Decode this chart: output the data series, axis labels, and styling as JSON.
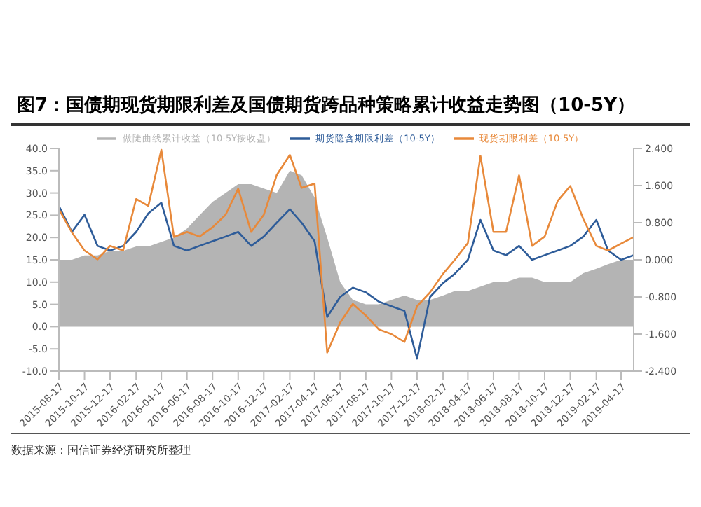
{
  "chart_data": {
    "type": "line",
    "title": "图7：国债期现货期限利差及国债期货跨品种策略累计收益走势图（10-5Y）",
    "x": [
      "2015-08-17",
      "2015-09-17",
      "2015-10-17",
      "2015-11-17",
      "2015-12-17",
      "2016-01-17",
      "2016-02-17",
      "2016-03-17",
      "2016-04-17",
      "2016-05-17",
      "2016-06-17",
      "2016-07-17",
      "2016-08-17",
      "2016-09-17",
      "2016-10-17",
      "2016-11-17",
      "2016-12-17",
      "2017-01-17",
      "2017-02-17",
      "2017-03-17",
      "2017-04-17",
      "2017-05-17",
      "2017-06-17",
      "2017-07-17",
      "2017-08-17",
      "2017-09-17",
      "2017-10-17",
      "2017-11-17",
      "2017-12-17",
      "2018-01-17",
      "2018-02-17",
      "2018-03-17",
      "2018-04-17",
      "2018-05-17",
      "2018-06-17",
      "2018-07-17",
      "2018-08-17",
      "2018-09-17",
      "2018-10-17",
      "2018-11-17",
      "2018-12-17",
      "2019-01-17",
      "2019-02-17",
      "2019-03-17",
      "2019-04-17",
      "2019-05-17"
    ],
    "series": [
      {
        "name": "做陡曲线累计收益（10-5Y按收盘）",
        "type": "area",
        "axis": "y",
        "color": "#b4b4b4",
        "values": [
          15,
          15,
          16,
          16,
          17,
          17,
          18,
          18,
          19,
          20,
          22,
          25,
          28,
          30,
          32,
          32,
          31,
          30,
          35,
          34,
          29,
          20,
          10,
          6,
          5,
          5,
          6,
          7,
          6,
          6,
          7,
          8,
          8,
          9,
          10,
          10,
          11,
          11,
          10,
          10,
          10,
          12,
          13,
          14,
          15,
          15
        ]
      },
      {
        "name": "期货隐含期限利差（10-5Y）",
        "axis": "y2",
        "color": "#2e5c99",
        "values": [
          1.16,
          0.6,
          0.97,
          0.3,
          0.2,
          0.3,
          0.6,
          1.0,
          1.23,
          0.3,
          0.2,
          0.3,
          0.4,
          0.5,
          0.6,
          0.3,
          0.5,
          0.8,
          1.09,
          0.8,
          0.4,
          -1.23,
          -0.8,
          -0.6,
          -0.7,
          -0.9,
          -1.0,
          -1.1,
          -2.13,
          -0.8,
          -0.5,
          -0.3,
          0.0,
          0.86,
          0.2,
          0.1,
          0.3,
          0.0,
          0.1,
          0.2,
          0.3,
          0.5,
          0.86,
          0.2,
          0.0,
          0.1
        ]
      },
      {
        "name": "现货期限利差（10-5Y）",
        "axis": "y2",
        "color": "#e8893a",
        "values": [
          1.09,
          0.59,
          0.2,
          0.01,
          0.3,
          0.2,
          1.31,
          1.16,
          2.37,
          0.49,
          0.6,
          0.5,
          0.7,
          0.97,
          1.53,
          0.6,
          0.97,
          1.83,
          2.26,
          1.55,
          1.64,
          -2.0,
          -1.35,
          -0.95,
          -1.2,
          -1.5,
          -1.6,
          -1.77,
          -1.0,
          -0.7,
          -0.3,
          0.0,
          0.36,
          2.24,
          0.6,
          0.6,
          1.82,
          0.3,
          0.5,
          1.27,
          1.59,
          0.88,
          0.3,
          0.2,
          0.35,
          0.49
        ]
      }
    ],
    "xlim": [
      "2015-08-17",
      "2019-05-17"
    ],
    "xticks": [
      "2015-08-17",
      "2015-10-17",
      "2015-12-17",
      "2016-02-17",
      "2016-04-17",
      "2016-06-17",
      "2016-08-17",
      "2016-10-17",
      "2016-12-17",
      "2017-02-17",
      "2017-04-17",
      "2017-06-17",
      "2017-08-17",
      "2017-10-17",
      "2017-12-17",
      "2018-02-17",
      "2018-04-17",
      "2018-06-17",
      "2018-08-17",
      "2018-10-17",
      "2018-12-17",
      "2019-02-17",
      "2019-04-17"
    ],
    "ylim": [
      -10,
      40
    ],
    "yticks": [
      {
        "value": -10,
        "label": "-10.0"
      },
      {
        "value": -5,
        "label": "-5.0"
      },
      {
        "value": 0,
        "label": "0.0"
      },
      {
        "value": 5,
        "label": "5.0"
      },
      {
        "value": 10,
        "label": "10.0"
      },
      {
        "value": 15,
        "label": "15.0"
      },
      {
        "value": 20,
        "label": "20.0"
      },
      {
        "value": 25,
        "label": "25.0"
      },
      {
        "value": 30,
        "label": "30.0"
      },
      {
        "value": 35,
        "label": "35.0"
      },
      {
        "value": 40,
        "label": "40.0"
      }
    ],
    "y2lim": [
      -2.4,
      2.4
    ],
    "y2ticks": [
      {
        "value": -2.4,
        "label": "-2.400"
      },
      {
        "value": -1.6,
        "label": "-1.600"
      },
      {
        "value": -0.8,
        "label": "-0.800"
      },
      {
        "value": 0,
        "label": "0.000"
      },
      {
        "value": 0.8,
        "label": "0.800"
      },
      {
        "value": 1.6,
        "label": "1.600"
      },
      {
        "value": 2.4,
        "label": "2.400"
      }
    ],
    "legend": "top",
    "grid": false,
    "marker": "none",
    "line_style": "solid",
    "annotations": [
      "数据来源：国信证券经济研究所整理"
    ]
  }
}
